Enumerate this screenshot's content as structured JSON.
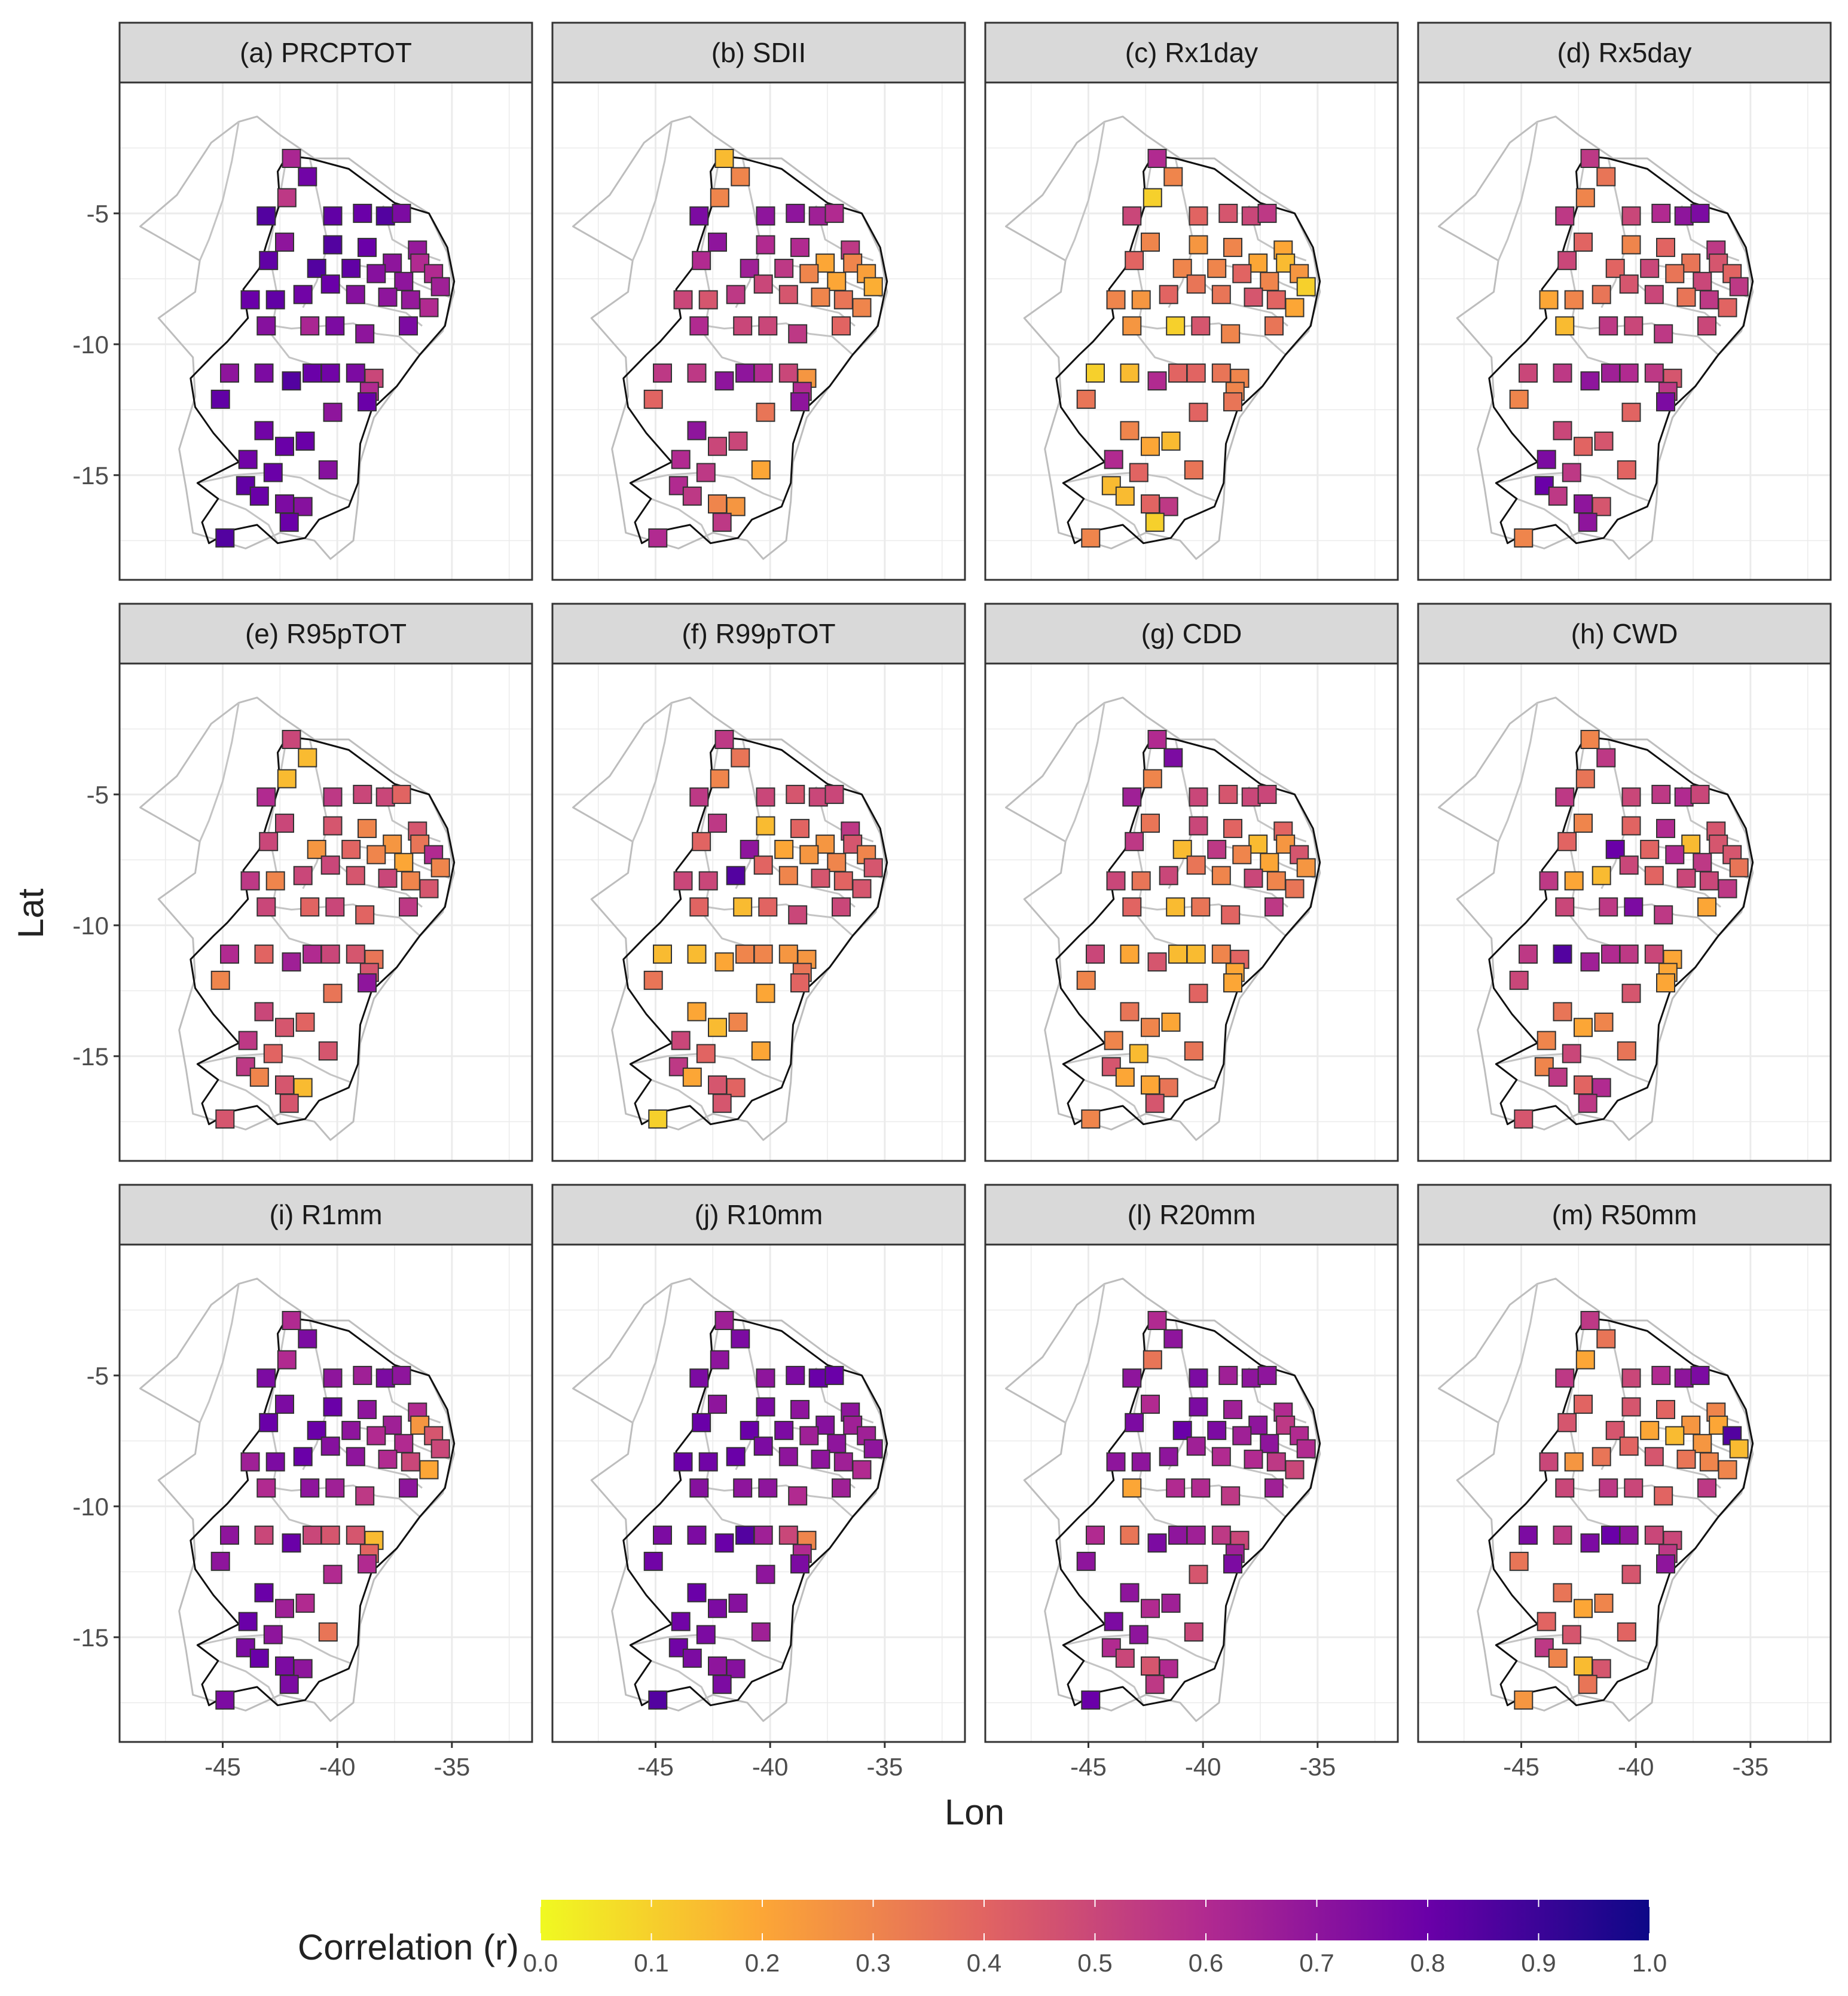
{
  "chart_data": {
    "type": "scatter",
    "xlabel": "Lon",
    "ylabel": "Lat",
    "xlim": [
      -49.5,
      -31.5
    ],
    "ylim": [
      -19.0,
      0.0
    ],
    "x_ticks": [
      -45,
      -40,
      -35
    ],
    "x_tick_labels": [
      "-45",
      "-40",
      "-35"
    ],
    "y_ticks": [
      -5,
      -10,
      -15
    ],
    "y_tick_labels": [
      "-5",
      "-10",
      "-15"
    ],
    "colorbar": {
      "title": "Correlation (r)",
      "range": [
        0.0,
        1.0
      ],
      "ticks": [
        "0.0",
        "0.1",
        "0.2",
        "0.3",
        "0.4",
        "0.5",
        "0.6",
        "0.7",
        "0.8",
        "0.9",
        "1.0"
      ],
      "colors": [
        "#f0f921",
        "#fca636",
        "#e16462",
        "#b12a90",
        "#6a00a8",
        "#0d0887"
      ],
      "position": "bottom"
    },
    "stations": [
      [
        -42.0,
        -2.9
      ],
      [
        -41.3,
        -3.6
      ],
      [
        -42.2,
        -4.4
      ],
      [
        -43.1,
        -5.1
      ],
      [
        -40.2,
        -5.1
      ],
      [
        -38.9,
        -5.0
      ],
      [
        -37.9,
        -5.1
      ],
      [
        -37.2,
        -5.0
      ],
      [
        -42.3,
        -6.1
      ],
      [
        -40.2,
        -6.2
      ],
      [
        -38.7,
        -6.3
      ],
      [
        -36.5,
        -6.4
      ],
      [
        -43.0,
        -6.8
      ],
      [
        -37.6,
        -6.9
      ],
      [
        -36.4,
        -6.9
      ],
      [
        -40.9,
        -7.1
      ],
      [
        -39.4,
        -7.1
      ],
      [
        -38.3,
        -7.3
      ],
      [
        -37.1,
        -7.6
      ],
      [
        -35.8,
        -7.3
      ],
      [
        -35.5,
        -7.8
      ],
      [
        -43.8,
        -8.3
      ],
      [
        -42.7,
        -8.3
      ],
      [
        -41.5,
        -8.1
      ],
      [
        -40.3,
        -7.7
      ],
      [
        -39.2,
        -8.1
      ],
      [
        -37.8,
        -8.2
      ],
      [
        -36.8,
        -8.3
      ],
      [
        -36.0,
        -8.6
      ],
      [
        -43.1,
        -9.3
      ],
      [
        -41.2,
        -9.3
      ],
      [
        -40.1,
        -9.3
      ],
      [
        -38.8,
        -9.6
      ],
      [
        -36.9,
        -9.3
      ],
      [
        -44.7,
        -11.1
      ],
      [
        -43.2,
        -11.1
      ],
      [
        -41.1,
        -11.1
      ],
      [
        -40.3,
        -11.1
      ],
      [
        -39.2,
        -11.1
      ],
      [
        -38.4,
        -11.3
      ],
      [
        -42.0,
        -11.4
      ],
      [
        -38.6,
        -11.8
      ],
      [
        -38.7,
        -12.2
      ],
      [
        -45.1,
        -12.1
      ],
      [
        -40.2,
        -12.6
      ],
      [
        -43.2,
        -13.3
      ],
      [
        -42.3,
        -13.9
      ],
      [
        -41.4,
        -13.7
      ],
      [
        -40.4,
        -14.8
      ],
      [
        -43.9,
        -14.4
      ],
      [
        -42.8,
        -14.9
      ],
      [
        -44.0,
        -15.4
      ],
      [
        -43.4,
        -15.8
      ],
      [
        -42.3,
        -16.1
      ],
      [
        -41.5,
        -16.2
      ],
      [
        -42.1,
        -16.8
      ],
      [
        -44.9,
        -17.4
      ]
    ],
    "panels": [
      {
        "title": "(a) PRCPTOT",
        "r": [
          0.62,
          0.78,
          0.55,
          0.85,
          0.82,
          0.8,
          0.85,
          0.75,
          0.7,
          0.85,
          0.8,
          0.68,
          0.82,
          0.7,
          0.6,
          0.85,
          0.82,
          0.72,
          0.7,
          0.6,
          0.65,
          0.8,
          0.82,
          0.78,
          0.8,
          0.72,
          0.7,
          0.68,
          0.6,
          0.72,
          0.62,
          0.75,
          0.7,
          0.75,
          0.7,
          0.75,
          0.8,
          0.78,
          0.75,
          0.5,
          0.85,
          0.6,
          0.8,
          0.82,
          0.7,
          0.78,
          0.8,
          0.8,
          0.72,
          0.78,
          0.8,
          0.82,
          0.8,
          0.75,
          0.72,
          0.8,
          0.85
        ]
      },
      {
        "title": "(b) SDII",
        "r": [
          0.15,
          0.3,
          0.3,
          0.75,
          0.7,
          0.7,
          0.65,
          0.6,
          0.7,
          0.6,
          0.6,
          0.55,
          0.6,
          0.2,
          0.3,
          0.65,
          0.55,
          0.3,
          0.2,
          0.22,
          0.18,
          0.5,
          0.45,
          0.55,
          0.5,
          0.45,
          0.3,
          0.35,
          0.3,
          0.6,
          0.5,
          0.5,
          0.55,
          0.4,
          0.55,
          0.55,
          0.7,
          0.6,
          0.5,
          0.25,
          0.7,
          0.6,
          0.7,
          0.4,
          0.35,
          0.7,
          0.5,
          0.5,
          0.2,
          0.6,
          0.55,
          0.6,
          0.55,
          0.3,
          0.25,
          0.55,
          0.6
        ]
      },
      {
        "title": "(c) Rx1day",
        "r": [
          0.6,
          0.3,
          0.1,
          0.5,
          0.4,
          0.45,
          0.5,
          0.55,
          0.3,
          0.25,
          0.3,
          0.2,
          0.4,
          0.2,
          0.15,
          0.3,
          0.3,
          0.4,
          0.3,
          0.25,
          0.1,
          0.3,
          0.25,
          0.4,
          0.35,
          0.35,
          0.45,
          0.4,
          0.2,
          0.25,
          0.1,
          0.45,
          0.3,
          0.35,
          0.1,
          0.15,
          0.4,
          0.4,
          0.35,
          0.3,
          0.6,
          0.3,
          0.35,
          0.35,
          0.4,
          0.3,
          0.2,
          0.15,
          0.35,
          0.6,
          0.4,
          0.15,
          0.15,
          0.4,
          0.55,
          0.1,
          0.3
        ]
      },
      {
        "title": "(d) Rx5day",
        "r": [
          0.55,
          0.35,
          0.3,
          0.55,
          0.5,
          0.6,
          0.7,
          0.75,
          0.4,
          0.3,
          0.4,
          0.55,
          0.5,
          0.35,
          0.45,
          0.4,
          0.5,
          0.35,
          0.5,
          0.4,
          0.55,
          0.2,
          0.3,
          0.35,
          0.45,
          0.5,
          0.35,
          0.55,
          0.4,
          0.15,
          0.55,
          0.5,
          0.55,
          0.5,
          0.5,
          0.55,
          0.65,
          0.6,
          0.55,
          0.45,
          0.7,
          0.55,
          0.75,
          0.3,
          0.4,
          0.5,
          0.4,
          0.45,
          0.4,
          0.75,
          0.55,
          0.8,
          0.55,
          0.7,
          0.45,
          0.7,
          0.3
        ]
      },
      {
        "title": "(e) R95pTOT",
        "r": [
          0.5,
          0.15,
          0.15,
          0.6,
          0.55,
          0.5,
          0.5,
          0.4,
          0.5,
          0.45,
          0.3,
          0.45,
          0.5,
          0.25,
          0.35,
          0.25,
          0.4,
          0.3,
          0.2,
          0.6,
          0.3,
          0.55,
          0.3,
          0.5,
          0.5,
          0.45,
          0.5,
          0.3,
          0.45,
          0.5,
          0.4,
          0.5,
          0.4,
          0.55,
          0.6,
          0.4,
          0.6,
          0.5,
          0.45,
          0.35,
          0.65,
          0.45,
          0.7,
          0.3,
          0.35,
          0.5,
          0.45,
          0.4,
          0.45,
          0.55,
          0.4,
          0.55,
          0.3,
          0.45,
          0.15,
          0.45,
          0.45
        ]
      },
      {
        "title": "(f) R99pTOT",
        "r": [
          0.55,
          0.35,
          0.3,
          0.55,
          0.5,
          0.45,
          0.5,
          0.5,
          0.55,
          0.15,
          0.4,
          0.55,
          0.4,
          0.25,
          0.45,
          0.7,
          0.2,
          0.25,
          0.3,
          0.3,
          0.45,
          0.5,
          0.5,
          0.85,
          0.4,
          0.3,
          0.45,
          0.4,
          0.45,
          0.4,
          0.15,
          0.4,
          0.5,
          0.5,
          0.15,
          0.15,
          0.3,
          0.3,
          0.25,
          0.25,
          0.2,
          0.35,
          0.4,
          0.35,
          0.2,
          0.2,
          0.15,
          0.3,
          0.2,
          0.5,
          0.4,
          0.55,
          0.2,
          0.45,
          0.4,
          0.45,
          0.1
        ]
      },
      {
        "title": "(g) CDD",
        "r": [
          0.6,
          0.75,
          0.3,
          0.65,
          0.5,
          0.45,
          0.5,
          0.5,
          0.35,
          0.5,
          0.4,
          0.4,
          0.55,
          0.15,
          0.25,
          0.15,
          0.55,
          0.3,
          0.2,
          0.45,
          0.25,
          0.5,
          0.35,
          0.5,
          0.35,
          0.3,
          0.5,
          0.3,
          0.35,
          0.4,
          0.15,
          0.35,
          0.4,
          0.55,
          0.5,
          0.2,
          0.15,
          0.15,
          0.3,
          0.4,
          0.45,
          0.2,
          0.2,
          0.3,
          0.4,
          0.35,
          0.3,
          0.2,
          0.35,
          0.3,
          0.15,
          0.45,
          0.2,
          0.2,
          0.35,
          0.45,
          0.3
        ]
      },
      {
        "title": "(h) CWD",
        "r": [
          0.3,
          0.55,
          0.35,
          0.55,
          0.5,
          0.55,
          0.6,
          0.5,
          0.3,
          0.4,
          0.6,
          0.45,
          0.4,
          0.15,
          0.45,
          0.8,
          0.4,
          0.6,
          0.55,
          0.45,
          0.35,
          0.55,
          0.2,
          0.15,
          0.5,
          0.4,
          0.5,
          0.5,
          0.55,
          0.5,
          0.55,
          0.75,
          0.55,
          0.2,
          0.55,
          0.85,
          0.6,
          0.55,
          0.5,
          0.2,
          0.65,
          0.2,
          0.2,
          0.5,
          0.45,
          0.35,
          0.2,
          0.3,
          0.35,
          0.3,
          0.5,
          0.3,
          0.55,
          0.4,
          0.6,
          0.55,
          0.45
        ]
      },
      {
        "title": "(i) R1mm",
        "r": [
          0.6,
          0.75,
          0.6,
          0.75,
          0.7,
          0.65,
          0.75,
          0.7,
          0.75,
          0.8,
          0.7,
          0.6,
          0.8,
          0.65,
          0.25,
          0.8,
          0.7,
          0.6,
          0.6,
          0.45,
          0.5,
          0.65,
          0.75,
          0.8,
          0.72,
          0.7,
          0.6,
          0.5,
          0.2,
          0.6,
          0.7,
          0.65,
          0.55,
          0.7,
          0.7,
          0.5,
          0.5,
          0.45,
          0.45,
          0.15,
          0.8,
          0.4,
          0.6,
          0.7,
          0.6,
          0.8,
          0.65,
          0.6,
          0.35,
          0.8,
          0.7,
          0.75,
          0.8,
          0.75,
          0.7,
          0.75,
          0.75
        ]
      },
      {
        "title": "(j) R10mm",
        "r": [
          0.65,
          0.75,
          0.7,
          0.75,
          0.7,
          0.75,
          0.8,
          0.8,
          0.7,
          0.75,
          0.7,
          0.7,
          0.8,
          0.72,
          0.65,
          0.8,
          0.75,
          0.65,
          0.7,
          0.65,
          0.7,
          0.8,
          0.78,
          0.8,
          0.75,
          0.7,
          0.7,
          0.65,
          0.6,
          0.72,
          0.7,
          0.7,
          0.6,
          0.65,
          0.75,
          0.75,
          0.85,
          0.65,
          0.5,
          0.3,
          0.8,
          0.6,
          0.75,
          0.78,
          0.7,
          0.8,
          0.75,
          0.72,
          0.65,
          0.78,
          0.75,
          0.78,
          0.75,
          0.7,
          0.72,
          0.75,
          0.85
        ]
      },
      {
        "title": "(l) R20mm",
        "r": [
          0.6,
          0.7,
          0.35,
          0.7,
          0.75,
          0.65,
          0.7,
          0.7,
          0.6,
          0.75,
          0.65,
          0.6,
          0.75,
          0.7,
          0.55,
          0.8,
          0.75,
          0.65,
          0.7,
          0.6,
          0.6,
          0.7,
          0.7,
          0.7,
          0.65,
          0.6,
          0.6,
          0.55,
          0.5,
          0.2,
          0.6,
          0.6,
          0.55,
          0.65,
          0.6,
          0.35,
          0.7,
          0.65,
          0.55,
          0.5,
          0.75,
          0.65,
          0.75,
          0.7,
          0.45,
          0.7,
          0.6,
          0.65,
          0.5,
          0.75,
          0.7,
          0.6,
          0.5,
          0.45,
          0.6,
          0.55,
          0.8
        ]
      },
      {
        "title": "(m) R50mm",
        "r": [
          0.55,
          0.35,
          0.2,
          0.55,
          0.5,
          0.6,
          0.7,
          0.75,
          0.4,
          0.45,
          0.4,
          0.3,
          0.45,
          0.25,
          0.2,
          0.45,
          0.2,
          0.15,
          0.25,
          0.85,
          0.15,
          0.5,
          0.25,
          0.35,
          0.4,
          0.45,
          0.35,
          0.3,
          0.3,
          0.5,
          0.55,
          0.5,
          0.4,
          0.55,
          0.75,
          0.55,
          0.8,
          0.7,
          0.5,
          0.5,
          0.75,
          0.55,
          0.7,
          0.35,
          0.45,
          0.35,
          0.2,
          0.3,
          0.4,
          0.4,
          0.45,
          0.55,
          0.3,
          0.15,
          0.45,
          0.35,
          0.25
        ]
      }
    ]
  }
}
